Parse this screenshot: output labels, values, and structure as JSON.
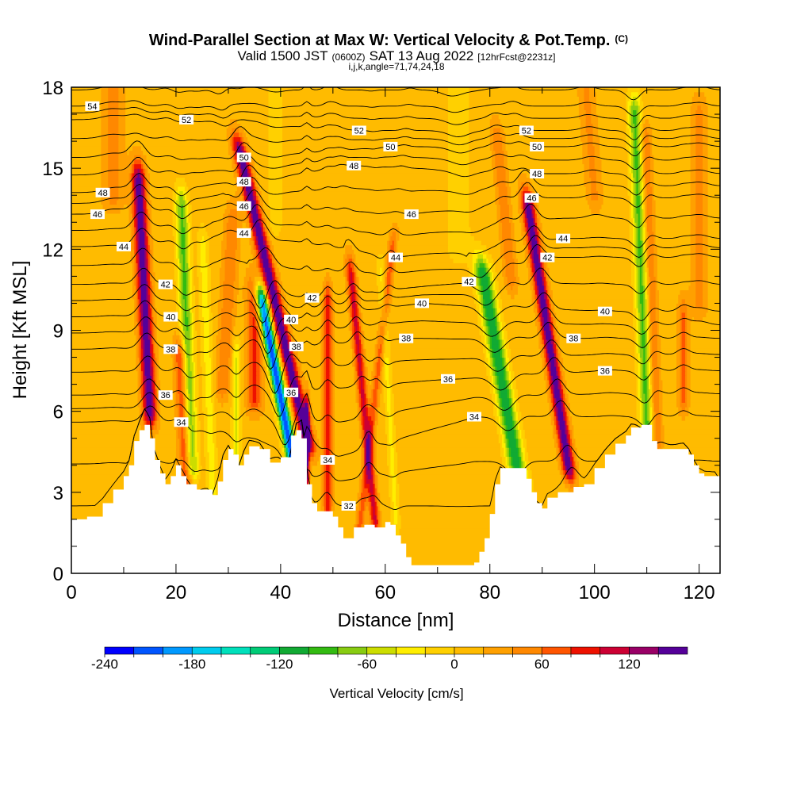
{
  "titles": {
    "main": "Wind-Parallel Section at Max W: Vertical Velocity & Pot.Temp.",
    "copyright": "(C)",
    "valid_prefix": "Valid 1500 JST",
    "valid_utc": "(0600Z)",
    "valid_date": "SAT 13 Aug 2022",
    "forecast": "[12hrFcst@2231z]",
    "indices": "i,j,k,angle=71,74,24,18"
  },
  "chart_data": {
    "type": "heatmap",
    "xlabel": "Distance [nm]",
    "ylabel": "Height [Kft MSL]",
    "xlim": [
      0,
      124
    ],
    "ylim": [
      0,
      18
    ],
    "x_ticks": [
      "0",
      "20",
      "40",
      "60",
      "80",
      "100",
      "120"
    ],
    "y_ticks": [
      "0",
      "3",
      "6",
      "9",
      "12",
      "15",
      "18"
    ],
    "background_velocity_cms": 10,
    "terrain_kft": [
      {
        "x": 0,
        "z": 2.0
      },
      {
        "x": 3,
        "z": 2.1
      },
      {
        "x": 6,
        "z": 2.6
      },
      {
        "x": 8,
        "z": 3.1
      },
      {
        "x": 10,
        "z": 3.6
      },
      {
        "x": 11,
        "z": 4.0
      },
      {
        "x": 12,
        "z": 4.9
      },
      {
        "x": 13,
        "z": 5.3
      },
      {
        "x": 14,
        "z": 5.5
      },
      {
        "x": 15,
        "z": 5.0
      },
      {
        "x": 16,
        "z": 4.2
      },
      {
        "x": 17,
        "z": 3.7
      },
      {
        "x": 18,
        "z": 3.3
      },
      {
        "x": 19,
        "z": 3.6
      },
      {
        "x": 20,
        "z": 4.0
      },
      {
        "x": 21,
        "z": 3.6
      },
      {
        "x": 22,
        "z": 3.3
      },
      {
        "x": 24,
        "z": 3.1
      },
      {
        "x": 26,
        "z": 3.1
      },
      {
        "x": 27,
        "z": 2.9
      },
      {
        "x": 28,
        "z": 3.4
      },
      {
        "x": 29,
        "z": 4.2
      },
      {
        "x": 30,
        "z": 4.6
      },
      {
        "x": 31,
        "z": 4.4
      },
      {
        "x": 32,
        "z": 4.0
      },
      {
        "x": 33,
        "z": 4.4
      },
      {
        "x": 34,
        "z": 4.7
      },
      {
        "x": 36,
        "z": 4.6
      },
      {
        "x": 38,
        "z": 4.1
      },
      {
        "x": 40,
        "z": 4.3
      },
      {
        "x": 42,
        "z": 5.1
      },
      {
        "x": 43,
        "z": 5.3
      },
      {
        "x": 44,
        "z": 5.0
      },
      {
        "x": 45,
        "z": 3.3
      },
      {
        "x": 46,
        "z": 2.6
      },
      {
        "x": 47,
        "z": 2.3
      },
      {
        "x": 49,
        "z": 2.3
      },
      {
        "x": 50,
        "z": 2.1
      },
      {
        "x": 51,
        "z": 1.7
      },
      {
        "x": 52,
        "z": 1.3
      },
      {
        "x": 53,
        "z": 1.3
      },
      {
        "x": 54,
        "z": 1.7
      },
      {
        "x": 56,
        "z": 1.8
      },
      {
        "x": 58,
        "z": 1.7
      },
      {
        "x": 60,
        "z": 1.9
      },
      {
        "x": 61,
        "z": 1.8
      },
      {
        "x": 62,
        "z": 1.4
      },
      {
        "x": 63,
        "z": 1.1
      },
      {
        "x": 64,
        "z": 0.6
      },
      {
        "x": 65,
        "z": 0.3
      },
      {
        "x": 67,
        "z": 0.3
      },
      {
        "x": 70,
        "z": 0.3
      },
      {
        "x": 72,
        "z": 0.3
      },
      {
        "x": 75,
        "z": 0.3
      },
      {
        "x": 77,
        "z": 0.4
      },
      {
        "x": 78,
        "z": 0.8
      },
      {
        "x": 79,
        "z": 1.3
      },
      {
        "x": 80,
        "z": 2.2
      },
      {
        "x": 81,
        "z": 3.3
      },
      {
        "x": 82,
        "z": 3.9
      },
      {
        "x": 84,
        "z": 3.9
      },
      {
        "x": 86,
        "z": 3.9
      },
      {
        "x": 87,
        "z": 3.5
      },
      {
        "x": 88,
        "z": 3.0
      },
      {
        "x": 89,
        "z": 2.6
      },
      {
        "x": 90,
        "z": 2.4
      },
      {
        "x": 91,
        "z": 2.8
      },
      {
        "x": 93,
        "z": 3.0
      },
      {
        "x": 96,
        "z": 3.2
      },
      {
        "x": 98,
        "z": 3.3
      },
      {
        "x": 100,
        "z": 3.9
      },
      {
        "x": 102,
        "z": 4.4
      },
      {
        "x": 104,
        "z": 4.8
      },
      {
        "x": 106,
        "z": 5.1
      },
      {
        "x": 107,
        "z": 5.4
      },
      {
        "x": 109,
        "z": 5.5
      },
      {
        "x": 110,
        "z": 5.5
      },
      {
        "x": 111,
        "z": 4.9
      },
      {
        "x": 112,
        "z": 4.6
      },
      {
        "x": 114,
        "z": 4.6
      },
      {
        "x": 117,
        "z": 4.6
      },
      {
        "x": 118,
        "z": 4.4
      },
      {
        "x": 119,
        "z": 4.0
      },
      {
        "x": 120,
        "z": 3.7
      },
      {
        "x": 121,
        "z": 3.6
      },
      {
        "x": 123,
        "z": 3.6
      },
      {
        "x": 124,
        "z": 3.3
      }
    ],
    "velocity_features": [
      {
        "x_base": 15,
        "slope": -0.25,
        "z0": 6.0,
        "z1": 14.5,
        "sigma": 1.3,
        "amp": 150
      },
      {
        "x_base": 22,
        "slope": -0.25,
        "z0": 3.5,
        "z1": 8.0,
        "sigma": 1.2,
        "amp": 80
      },
      {
        "x_base": 23,
        "slope": -0.2,
        "z0": 4.0,
        "z1": 13.5,
        "sigma": 1.2,
        "amp": -95
      },
      {
        "x_base": 27,
        "slope": -0.2,
        "z0": 3.0,
        "z1": 12.0,
        "sigma": 1.0,
        "amp": -40
      },
      {
        "x_base": 29,
        "slope": 0.3,
        "z0": 7.0,
        "z1": 13.0,
        "sigma": 1.4,
        "amp": 50
      },
      {
        "x_base": 31.5,
        "slope": 0.0,
        "z0": 4.0,
        "z1": 8.0,
        "sigma": 0.8,
        "amp": -55
      },
      {
        "x_base": 35,
        "slope": 0.0,
        "z0": 6.5,
        "z1": 10.5,
        "sigma": 1.5,
        "amp": 75
      },
      {
        "x_base": 45,
        "slope": -1.2,
        "z0": 5.0,
        "z1": 15.5,
        "sigma": 1.3,
        "amp": 150
      },
      {
        "x_base": 45,
        "slope": 0.0,
        "z0": 3.6,
        "z1": 5.8,
        "sigma": 0.5,
        "amp": 140
      },
      {
        "x_base": 43,
        "slope": -1.0,
        "z0": 3.5,
        "z1": 10.0,
        "sigma": 1.1,
        "amp": -230
      },
      {
        "x_base": 49,
        "slope": 0.0,
        "z0": 2.5,
        "z1": 10.0,
        "sigma": 0.8,
        "amp": 90
      },
      {
        "x_base": 55,
        "slope": 0.6,
        "z0": 1.5,
        "z1": 12.0,
        "sigma": 0.8,
        "amp": 60
      },
      {
        "x_base": 58,
        "slope": -0.5,
        "z0": 2.0,
        "z1": 11.0,
        "sigma": 0.9,
        "amp": 95
      },
      {
        "x_base": 62,
        "slope": -0.3,
        "z0": 2.0,
        "z1": 11.0,
        "sigma": 0.8,
        "amp": -35
      },
      {
        "x_base": 86,
        "slope": -0.9,
        "z0": 3.0,
        "z1": 11.0,
        "sigma": 1.6,
        "amp": -130
      },
      {
        "x_base": 95,
        "slope": -0.8,
        "z0": 4.0,
        "z1": 13.5,
        "sigma": 1.2,
        "amp": 150
      },
      {
        "x_base": 84,
        "slope": -0.5,
        "z0": 11.0,
        "z1": 16.0,
        "sigma": 1.2,
        "amp": 50
      },
      {
        "x_base": 110,
        "slope": -0.2,
        "z0": 5.5,
        "z1": 17.0,
        "sigma": 1.2,
        "amp": -95
      },
      {
        "x_base": 112,
        "slope": -0.2,
        "z0": 5.0,
        "z1": 16.0,
        "sigma": 1.0,
        "amp": 50
      },
      {
        "x_base": 117,
        "slope": 0.0,
        "z0": 6.5,
        "z1": 9.5,
        "sigma": 1.0,
        "amp": 55
      },
      {
        "x_base": 120,
        "slope": 0.0,
        "z0": 10.0,
        "z1": 17.0,
        "sigma": 1.5,
        "amp": 35
      },
      {
        "x_base": 100,
        "slope": -0.4,
        "z0": 14.0,
        "z1": 18.0,
        "sigma": 1.5,
        "amp": 35
      },
      {
        "x_base": 74,
        "slope": 0.0,
        "z0": 12.0,
        "z1": 18.0,
        "sigma": 2.5,
        "amp": -20
      },
      {
        "x_base": 39,
        "slope": 0.0,
        "z0": 13.0,
        "z1": 18.0,
        "sigma": 1.5,
        "amp": -20
      },
      {
        "x_base": 8,
        "slope": 0.0,
        "z0": 14.0,
        "z1": 18.0,
        "sigma": 2.0,
        "amp": 40
      }
    ],
    "contour_levels_shown": [
      32,
      34,
      36,
      38,
      40,
      42,
      44,
      46,
      48,
      50,
      52,
      54
    ],
    "contour_labels": [
      {
        "text": "54",
        "x": 4,
        "z": 17.3
      },
      {
        "text": "52",
        "x": 22,
        "z": 16.8
      },
      {
        "text": "52",
        "x": 55,
        "z": 16.4
      },
      {
        "text": "52",
        "x": 87,
        "z": 16.4
      },
      {
        "text": "50",
        "x": 33,
        "z": 15.4
      },
      {
        "text": "50",
        "x": 61,
        "z": 15.8
      },
      {
        "text": "50",
        "x": 89,
        "z": 15.8
      },
      {
        "text": "48",
        "x": 6,
        "z": 14.1
      },
      {
        "text": "48",
        "x": 33,
        "z": 14.5
      },
      {
        "text": "48",
        "x": 54,
        "z": 15.1
      },
      {
        "text": "48",
        "x": 89,
        "z": 14.8
      },
      {
        "text": "46",
        "x": 5,
        "z": 13.3
      },
      {
        "text": "46",
        "x": 33,
        "z": 13.6
      },
      {
        "text": "46",
        "x": 65,
        "z": 13.3
      },
      {
        "text": "46",
        "x": 88,
        "z": 13.9
      },
      {
        "text": "44",
        "x": 10,
        "z": 12.1
      },
      {
        "text": "44",
        "x": 33,
        "z": 12.6
      },
      {
        "text": "44",
        "x": 62,
        "z": 11.7
      },
      {
        "text": "44",
        "x": 94,
        "z": 12.4
      },
      {
        "text": "42",
        "x": 18,
        "z": 10.7
      },
      {
        "text": "42",
        "x": 46,
        "z": 10.2
      },
      {
        "text": "42",
        "x": 76,
        "z": 10.8
      },
      {
        "text": "42",
        "x": 91,
        "z": 11.7
      },
      {
        "text": "40",
        "x": 19,
        "z": 9.5
      },
      {
        "text": "40",
        "x": 42,
        "z": 9.4
      },
      {
        "text": "40",
        "x": 67,
        "z": 10.0
      },
      {
        "text": "40",
        "x": 102,
        "z": 9.7
      },
      {
        "text": "38",
        "x": 19,
        "z": 8.3
      },
      {
        "text": "38",
        "x": 43,
        "z": 8.4
      },
      {
        "text": "38",
        "x": 64,
        "z": 8.7
      },
      {
        "text": "38",
        "x": 96,
        "z": 8.7
      },
      {
        "text": "36",
        "x": 18,
        "z": 6.6
      },
      {
        "text": "36",
        "x": 42,
        "z": 6.7
      },
      {
        "text": "36",
        "x": 72,
        "z": 7.2
      },
      {
        "text": "36",
        "x": 102,
        "z": 7.5
      },
      {
        "text": "34",
        "x": 21,
        "z": 5.6
      },
      {
        "text": "34",
        "x": 49,
        "z": 4.2
      },
      {
        "text": "34",
        "x": 77,
        "z": 5.8
      },
      {
        "text": "32",
        "x": 53,
        "z": 2.5
      }
    ]
  },
  "colorbar": {
    "label": "Vertical Velocity [cm/s]",
    "tick_labels": [
      {
        "value": -240,
        "text": "-240"
      },
      {
        "value": -180,
        "text": "-180"
      },
      {
        "value": -120,
        "text": "-120"
      },
      {
        "value": -60,
        "text": "-60"
      },
      {
        "value": 0,
        "text": "0"
      },
      {
        "value": 60,
        "text": "60"
      },
      {
        "value": 120,
        "text": "120"
      }
    ],
    "bins": [
      {
        "lo": -240,
        "hi": -220,
        "color": "#0000ff"
      },
      {
        "lo": -220,
        "hi": -200,
        "color": "#0055ff"
      },
      {
        "lo": -200,
        "hi": -180,
        "color": "#0099ff"
      },
      {
        "lo": -180,
        "hi": -160,
        "color": "#00ccee"
      },
      {
        "lo": -160,
        "hi": -140,
        "color": "#00e0bb"
      },
      {
        "lo": -140,
        "hi": -120,
        "color": "#00cc77"
      },
      {
        "lo": -120,
        "hi": -100,
        "color": "#11aa33"
      },
      {
        "lo": -100,
        "hi": -80,
        "color": "#33bb11"
      },
      {
        "lo": -80,
        "hi": -60,
        "color": "#88cc11"
      },
      {
        "lo": -60,
        "hi": -40,
        "color": "#ccdd00"
      },
      {
        "lo": -40,
        "hi": -20,
        "color": "#ffee00"
      },
      {
        "lo": -20,
        "hi": 0,
        "color": "#ffd000"
      },
      {
        "lo": 0,
        "hi": 20,
        "color": "#ffbb00"
      },
      {
        "lo": 20,
        "hi": 40,
        "color": "#ffa000"
      },
      {
        "lo": 40,
        "hi": 60,
        "color": "#ff8800"
      },
      {
        "lo": 60,
        "hi": 80,
        "color": "#ff5500"
      },
      {
        "lo": 80,
        "hi": 100,
        "color": "#ee1100"
      },
      {
        "lo": 100,
        "hi": 120,
        "color": "#cc0033"
      },
      {
        "lo": 120,
        "hi": 140,
        "color": "#990066"
      },
      {
        "lo": 140,
        "hi": 160,
        "color": "#550099"
      }
    ]
  }
}
